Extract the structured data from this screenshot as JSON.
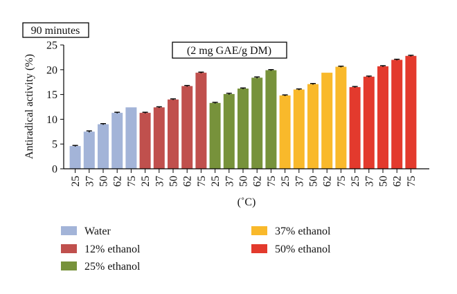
{
  "chart_data": {
    "type": "bar",
    "corner_label": "90 minutes",
    "annotation": "(2 mg GAE/g DM)",
    "ylabel": "Antiradical activity (%)",
    "xlabel": "(˚C)",
    "ylim": [
      0,
      25
    ],
    "yticks": [
      0,
      5,
      10,
      15,
      20,
      25
    ],
    "categories": [
      "25",
      "37",
      "50",
      "62",
      "75"
    ],
    "grid": false,
    "legend_position": "bottom",
    "series": [
      {
        "name": "Water",
        "color": "#a3b4d8",
        "values": [
          4.6,
          7.5,
          9.0,
          11.3,
          12.4
        ],
        "errors": [
          0.12,
          0.15,
          0.12,
          0.12,
          0.0
        ]
      },
      {
        "name": "12% ethanol",
        "color": "#c0504d",
        "values": [
          11.3,
          12.4,
          14.0,
          16.7,
          19.4
        ],
        "errors": [
          0.12,
          0.12,
          0.12,
          0.12,
          0.12
        ]
      },
      {
        "name": "25% ethanol",
        "color": "#77923b",
        "values": [
          13.3,
          15.1,
          16.2,
          18.4,
          19.9
        ],
        "errors": [
          0.12,
          0.15,
          0.12,
          0.15,
          0.12
        ]
      },
      {
        "name": "37% ethanol",
        "color": "#f9b92b",
        "values": [
          14.8,
          16.0,
          17.1,
          19.4,
          20.6
        ],
        "errors": [
          0.12,
          0.12,
          0.12,
          0.0,
          0.12
        ]
      },
      {
        "name": "50% ethanol",
        "color": "#e33a2d",
        "values": [
          16.5,
          18.6,
          20.7,
          22.0,
          22.8
        ],
        "errors": [
          0.12,
          0.12,
          0.12,
          0.12,
          0.12
        ]
      }
    ]
  }
}
